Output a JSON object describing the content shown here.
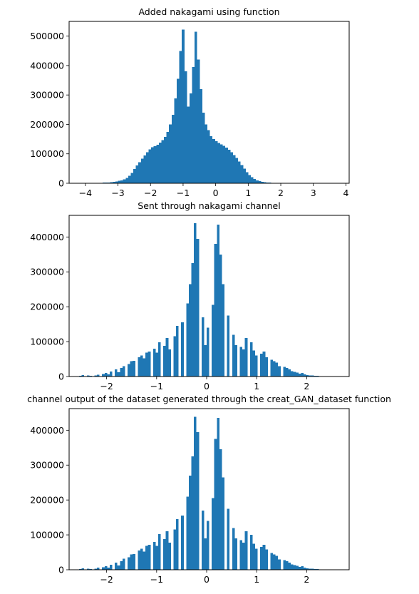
{
  "chart_data": [
    {
      "type": "bar",
      "title": "Added nakagami using function",
      "xlabel": "",
      "ylabel": "",
      "xlim": [
        -4.5,
        4.1
      ],
      "ylim": [
        0,
        550000
      ],
      "bin_start": -4.1,
      "bin_width": 0.0785,
      "x_ticks": [
        -4,
        -3,
        -2,
        -1,
        0,
        1,
        2,
        3,
        4
      ],
      "y_ticks": [
        0,
        100000,
        200000,
        300000,
        400000,
        500000
      ],
      "x_tick_labels": [
        "−4",
        "−3",
        "−2",
        "−1",
        "0",
        "1",
        "2",
        "3",
        "4"
      ],
      "y_tick_labels": [
        "0",
        "100000",
        "200000",
        "300000",
        "400000",
        "500000"
      ],
      "color": "#1f77b4",
      "values": [
        100,
        200,
        300,
        500,
        600,
        800,
        1000,
        1500,
        2000,
        2500,
        3000,
        4000,
        5000,
        6000,
        8000,
        10000,
        13000,
        18000,
        25000,
        35000,
        48000,
        60000,
        72000,
        84000,
        95000,
        106000,
        115000,
        122000,
        126000,
        131000,
        138000,
        146000,
        158000,
        175000,
        200000,
        232000,
        288000,
        355000,
        450000,
        522000,
        380000,
        260000,
        305000,
        395000,
        515000,
        420000,
        320000,
        240000,
        200000,
        180000,
        160000,
        150000,
        143000,
        137000,
        132000,
        127000,
        121000,
        114000,
        106000,
        96000,
        86000,
        74000,
        62000,
        50000,
        38000,
        28000,
        20000,
        14000,
        10000,
        7000,
        5000,
        4000,
        3000,
        2000,
        1500,
        1200,
        1000,
        800,
        600,
        500,
        400,
        300,
        200,
        150,
        100,
        100,
        80,
        60,
        50,
        40,
        30,
        20,
        20,
        10,
        10,
        10,
        10,
        10,
        10,
        10,
        10
      ]
    },
    {
      "type": "bar",
      "title": "Sent through nakagami channel",
      "xlabel": "",
      "ylabel": "",
      "xlim": [
        -2.75,
        2.85
      ],
      "ylim": [
        0,
        462000
      ],
      "bin_start": -2.55,
      "bin_width": 0.051,
      "x_ticks": [
        -2,
        -1,
        0,
        1,
        2
      ],
      "y_ticks": [
        0,
        100000,
        200000,
        300000,
        400000
      ],
      "x_tick_labels": [
        "−2",
        "−1",
        "0",
        "1",
        "2"
      ],
      "y_tick_labels": [
        "0",
        "100000",
        "200000",
        "300000",
        "400000"
      ],
      "color": "#1f77b4",
      "values": [
        2000,
        4000,
        0,
        3000,
        2000,
        0,
        3000,
        5000,
        0,
        7000,
        10000,
        6000,
        14000,
        0,
        20000,
        12000,
        25000,
        30000,
        0,
        36000,
        44000,
        45000,
        0,
        55000,
        60000,
        52000,
        68000,
        72000,
        0,
        80000,
        68000,
        98000,
        0,
        88000,
        110000,
        78000,
        0,
        115000,
        145000,
        0,
        155000,
        0,
        210000,
        265000,
        325000,
        440000,
        395000,
        0,
        170000,
        90000,
        140000,
        0,
        205000,
        380000,
        435000,
        350000,
        265000,
        0,
        175000,
        0,
        120000,
        90000,
        0,
        85000,
        78000,
        110000,
        0,
        98000,
        75000,
        60000,
        0,
        65000,
        72000,
        55000,
        0,
        48000,
        44000,
        40000,
        30000,
        0,
        28000,
        25000,
        20000,
        15000,
        13000,
        11000,
        8000,
        10000,
        6000,
        4000,
        3000,
        3000,
        2000,
        2000,
        1000,
        1000,
        0,
        500,
        0,
        0
      ]
    },
    {
      "type": "bar",
      "title": "channel output of the dataset generated through the creat_GAN_dataset function",
      "xlabel": "",
      "ylabel": "",
      "xlim": [
        -2.75,
        2.85
      ],
      "ylim": [
        0,
        462000
      ],
      "bin_start": -2.55,
      "bin_width": 0.051,
      "x_ticks": [
        -2,
        -1,
        0,
        1,
        2
      ],
      "y_ticks": [
        0,
        100000,
        200000,
        300000,
        400000
      ],
      "x_tick_labels": [
        "−2",
        "−1",
        "0",
        "1",
        "2"
      ],
      "y_tick_labels": [
        "0",
        "100000",
        "200000",
        "300000",
        "400000"
      ],
      "color": "#1f77b4",
      "values": [
        2000,
        4000,
        0,
        3000,
        2000,
        0,
        3000,
        6000,
        0,
        7000,
        10000,
        6000,
        14000,
        0,
        20000,
        12000,
        25000,
        32000,
        0,
        36000,
        44000,
        45000,
        0,
        55000,
        60000,
        52000,
        68000,
        72000,
        0,
        80000,
        68000,
        102000,
        0,
        88000,
        110000,
        78000,
        0,
        115000,
        145000,
        0,
        155000,
        0,
        210000,
        270000,
        325000,
        438000,
        395000,
        0,
        170000,
        90000,
        140000,
        0,
        205000,
        375000,
        435000,
        345000,
        265000,
        0,
        175000,
        0,
        120000,
        90000,
        0,
        85000,
        78000,
        110000,
        0,
        100000,
        75000,
        60000,
        0,
        65000,
        72000,
        58000,
        0,
        48000,
        44000,
        40000,
        30000,
        0,
        28000,
        25000,
        20000,
        15000,
        13000,
        11000,
        8000,
        10000,
        6000,
        4000,
        3000,
        3000,
        2000,
        2000,
        1000,
        1000,
        0,
        500,
        0,
        0
      ]
    }
  ]
}
